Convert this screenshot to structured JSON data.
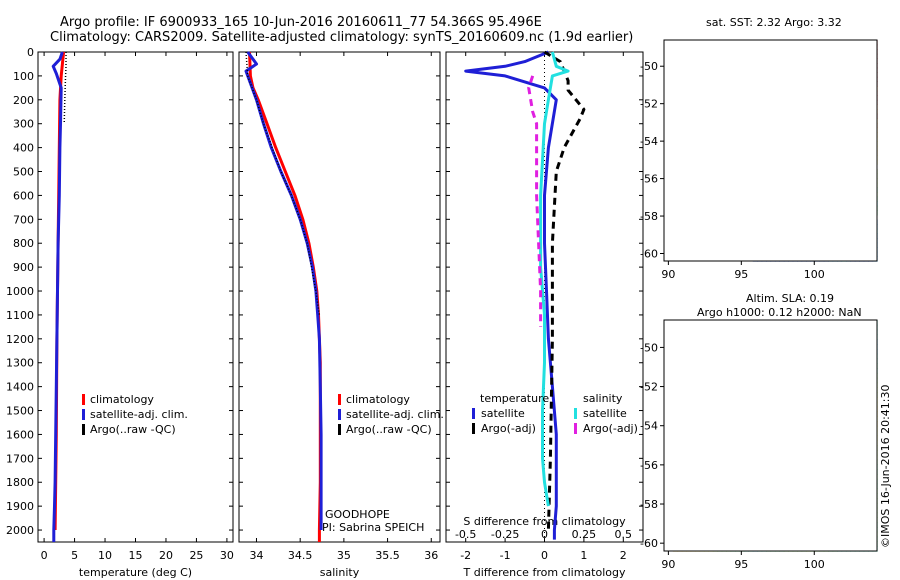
{
  "header": {
    "line1": "Argo profile: IF 6900933_165 10-Jun-2016 20160611_77 54.366S 95.496E",
    "line2": "Climatology: CARS2009. Satellite-adjusted climatology: synTS_20160609.nc (1.9d earlier)"
  },
  "right_titles": {
    "sst": "sat. SST: 2.32 Argo: 3.32",
    "sla1": "Altim. SLA: 0.19",
    "sla2": "Argo h1000: 0.12 h2000: NaN"
  },
  "colors": {
    "red": "#ff0000",
    "blue": "#1f1fd6",
    "black": "#000000",
    "cyan": "#22e0e0",
    "magenta": "#e020e0"
  },
  "notes": {
    "goodhope": "GOODHOPE",
    "pi": "PI: Sabrina SPEICH",
    "imos": "©IMOS 16-Jun-2016 20:41:30"
  },
  "legends": {
    "temp": [
      "climatology",
      "satellite-adj. clim.",
      "Argo(..raw -QC)"
    ],
    "sal": [
      "climatology",
      "satellite-adj. clim.",
      "Argo(..raw -QC)"
    ],
    "diff_t_title": "temperature",
    "diff_s_title": "salinity",
    "diff_t": [
      "satellite",
      "Argo(-adj)"
    ],
    "diff_s": [
      "satellite",
      "Argo(-adj)"
    ]
  },
  "chart_data": [
    {
      "type": "line",
      "xlabel": "temperature (deg C)",
      "xlim": [
        -1,
        31
      ],
      "xticks": [
        0,
        5,
        10,
        15,
        20,
        25,
        30
      ],
      "ylim": [
        0,
        2050
      ],
      "yticks": [
        0,
        100,
        200,
        300,
        400,
        500,
        600,
        700,
        800,
        900,
        1000,
        1100,
        1200,
        1300,
        1400,
        1500,
        1600,
        1700,
        1800,
        1900,
        2000
      ],
      "series": [
        {
          "name": "climatology",
          "color": "red",
          "x": [
            3.2,
            3.0,
            2.8,
            2.6,
            2.5,
            2.4,
            2.3,
            2.2,
            2.1,
            2.05,
            2.0,
            1.9,
            1.8
          ],
          "y": [
            0,
            50,
            100,
            200,
            400,
            600,
            800,
            1000,
            1200,
            1400,
            1600,
            1800,
            2000
          ]
        },
        {
          "name": "satellite-adj. clim.",
          "color": "blue",
          "x": [
            3.0,
            2.6,
            1.5,
            2.0,
            2.8,
            2.7,
            2.6,
            2.5,
            2.3,
            2.2,
            2.1,
            2.0,
            1.9,
            1.8,
            1.7,
            1.6,
            1.6
          ],
          "y": [
            0,
            30,
            60,
            90,
            150,
            300,
            400,
            600,
            800,
            1000,
            1200,
            1400,
            1600,
            1800,
            1900,
            2000,
            2050
          ]
        },
        {
          "name": "Argo(..raw -QC)",
          "color": "black",
          "dotted": true,
          "x": [
            3.6,
            3.6,
            3.5,
            3.4,
            3.3
          ],
          "y": [
            0,
            60,
            120,
            200,
            300
          ]
        }
      ]
    },
    {
      "type": "line",
      "xlabel": "salinity",
      "xlim": [
        33.8,
        36.1
      ],
      "xticks": [
        34,
        34.5,
        35,
        35.5,
        36
      ],
      "ylim": [
        0,
        2050
      ],
      "series": [
        {
          "name": "climatology",
          "color": "red",
          "x": [
            33.92,
            33.93,
            33.96,
            34.02,
            34.12,
            34.22,
            34.33,
            34.44,
            34.53,
            34.6,
            34.65,
            34.69,
            34.71,
            34.72,
            34.73,
            34.73,
            34.73,
            34.73,
            34.72,
            34.72
          ],
          "y": [
            0,
            100,
            150,
            200,
            300,
            400,
            500,
            600,
            700,
            800,
            900,
            1000,
            1100,
            1200,
            1300,
            1400,
            1600,
            1800,
            2000,
            2050
          ]
        },
        {
          "name": "satellite-adj. clim.",
          "color": "blue",
          "x": [
            33.9,
            34.0,
            33.88,
            33.92,
            34.0,
            34.08,
            34.17,
            34.28,
            34.4,
            34.5,
            34.58,
            34.64,
            34.68,
            34.7,
            34.72,
            34.73,
            34.74,
            34.74,
            34.74
          ],
          "y": [
            0,
            50,
            80,
            120,
            200,
            300,
            400,
            500,
            600,
            700,
            800,
            900,
            1000,
            1100,
            1200,
            1400,
            1600,
            1800,
            2000
          ]
        },
        {
          "name": "Argo(..raw -QC)",
          "color": "black",
          "dotted": true,
          "x": [
            33.88,
            33.9,
            33.95,
            34.0,
            34.08,
            34.18,
            34.28,
            34.4,
            34.5,
            34.58,
            34.63,
            34.68,
            34.72
          ],
          "y": [
            0,
            100,
            150,
            200,
            300,
            400,
            500,
            600,
            700,
            800,
            900,
            1000,
            1100
          ]
        }
      ]
    },
    {
      "type": "line",
      "xlabel": "T difference from climatology",
      "xlim": [
        -2.5,
        2.5
      ],
      "xticks": [
        -2,
        -1,
        0,
        1,
        2
      ],
      "top_label": "S difference from climatology",
      "top_ticks": [
        "-0.5",
        "-0.25",
        "0",
        "0.25",
        "0.5"
      ],
      "top_tick_x": [
        -2,
        -1,
        0,
        1,
        2
      ],
      "ylim": [
        0,
        2050
      ],
      "series": [
        {
          "name": "temperature satellite",
          "color": "blue",
          "x": [
            0.1,
            -0.5,
            -1.0,
            -2.0,
            -1.0,
            0.0,
            0.3,
            0.1,
            0.0,
            0.0,
            0.05,
            0.1,
            0.2,
            0.3,
            0.3,
            0.3,
            0.25,
            0.25
          ],
          "y": [
            0,
            40,
            60,
            80,
            100,
            150,
            200,
            400,
            600,
            800,
            1000,
            1200,
            1400,
            1600,
            1800,
            1900,
            2000,
            2040
          ]
        },
        {
          "name": "temperature Argo(-adj)",
          "color": "black",
          "dashed": true,
          "x": [
            0.0,
            0.4,
            0.5,
            0.6,
            0.6,
            1.0,
            0.9,
            0.5,
            0.3,
            0.2,
            0.2,
            0.15,
            0.1
          ],
          "y": [
            0,
            40,
            80,
            120,
            160,
            240,
            280,
            400,
            500,
            800,
            1200,
            1700,
            2000
          ]
        },
        {
          "name": "salinity satellite",
          "color": "cyan",
          "x": [
            0.2,
            0.3,
            0.6,
            0.2,
            0.1,
            0.0,
            -0.1,
            -0.1,
            0.0,
            0.0,
            -0.05,
            -0.05,
            0.0,
            0.1
          ],
          "y": [
            0,
            60,
            80,
            100,
            200,
            300,
            600,
            900,
            1100,
            1300,
            1500,
            1700,
            1800,
            1900
          ]
        },
        {
          "name": "salinity Argo(-adj)",
          "color": "magenta",
          "dashed": true,
          "x": [
            -0.3,
            -0.4,
            -0.3,
            -0.2,
            -0.2,
            -0.1,
            -0.1
          ],
          "y": [
            100,
            150,
            250,
            300,
            600,
            1000,
            1150
          ]
        }
      ]
    }
  ],
  "maps": {
    "sst": {
      "yticks": [
        -50,
        -52,
        -54,
        -56,
        -58,
        -60
      ],
      "xticks": [
        90,
        95,
        100
      ]
    },
    "sla": {
      "yticks": [
        -50,
        -52,
        -54,
        -56,
        -58,
        -60
      ],
      "xticks": [
        90,
        95,
        100
      ]
    }
  }
}
